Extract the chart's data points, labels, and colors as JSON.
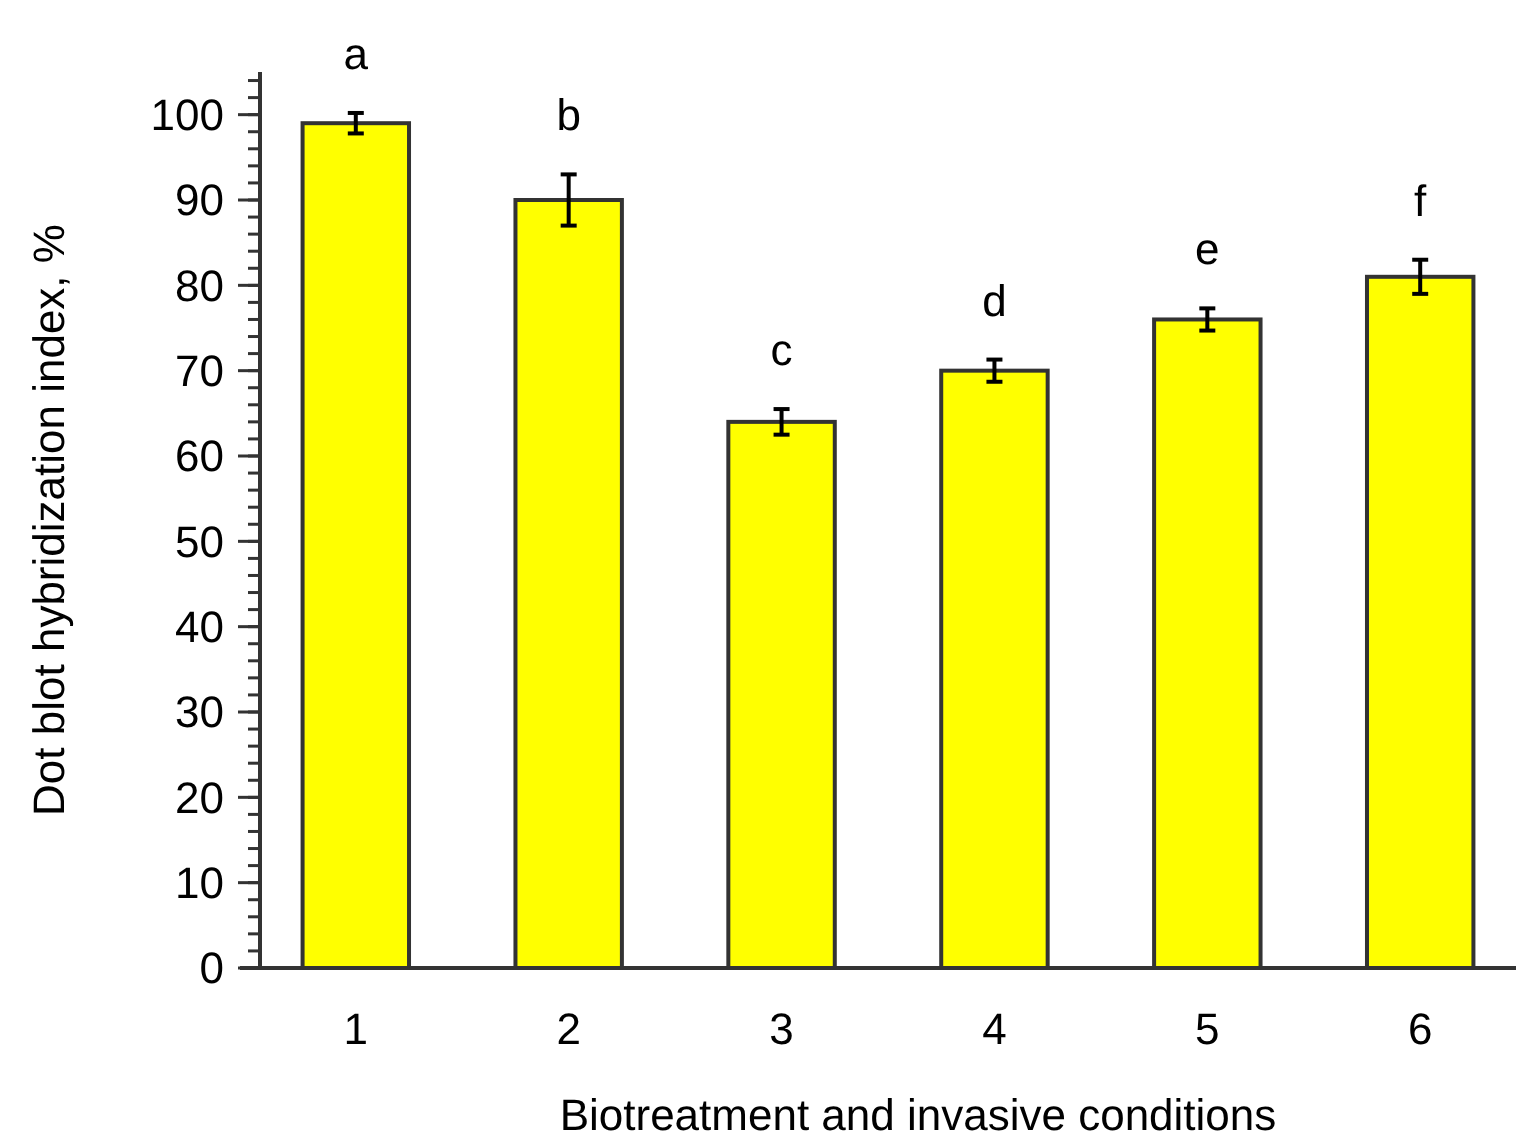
{
  "chart_data": {
    "type": "bar",
    "xlabel": "Biotreatment and invasive conditions",
    "ylabel": "Dot blot hybridization index, %",
    "categories": [
      "1",
      "2",
      "3",
      "4",
      "5",
      "6"
    ],
    "values": [
      99,
      90,
      64,
      70,
      76,
      81
    ],
    "errors": [
      1.2,
      3,
      1.5,
      1.3,
      1.3,
      2
    ],
    "color": "#ffff00",
    "annotations": [
      "a",
      "b",
      "c",
      "d",
      "e",
      "f"
    ],
    "ylim": [
      0,
      105
    ],
    "yticks": [
      0,
      10,
      20,
      30,
      40,
      50,
      60,
      70,
      80,
      90,
      100
    ],
    "grid": false
  }
}
